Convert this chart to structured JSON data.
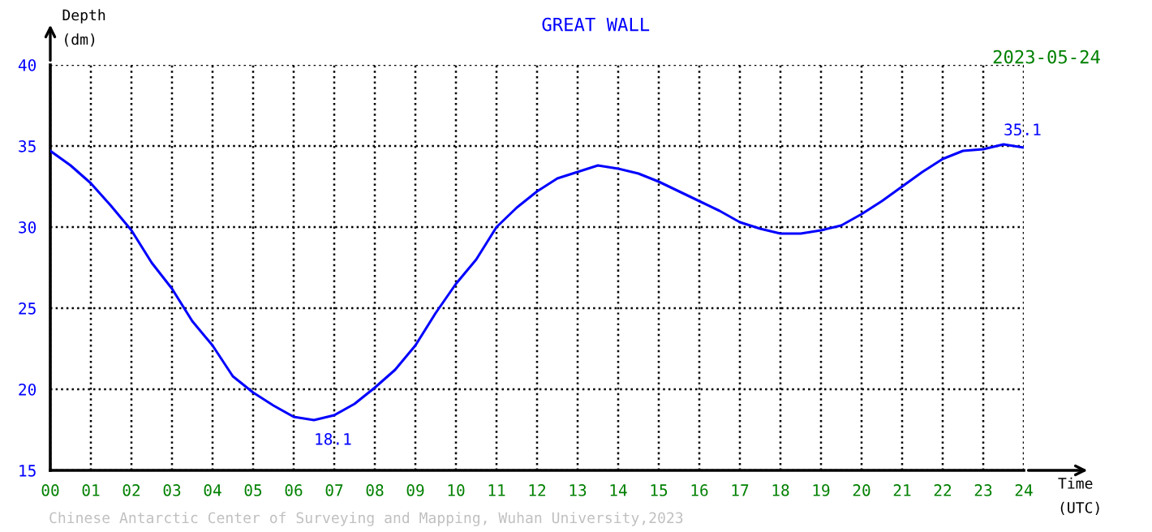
{
  "chart_data": {
    "type": "line",
    "title": "GREAT WALL",
    "subtitle": "2023-05-24",
    "xlabel": "Time\n(UTC)",
    "ylabel": "Depth\n(dm)",
    "x": [
      0,
      0.5,
      1,
      1.5,
      2,
      2.5,
      3,
      3.5,
      4,
      4.5,
      5,
      5.5,
      6,
      6.5,
      7,
      7.5,
      8,
      8.5,
      9,
      9.5,
      10,
      10.5,
      11,
      11.5,
      12,
      12.5,
      13,
      13.5,
      14,
      14.5,
      15,
      15.5,
      16,
      16.5,
      17,
      17.5,
      18,
      18.5,
      19,
      19.5,
      20,
      20.5,
      21,
      21.5,
      22,
      22.5,
      23,
      23.5,
      24
    ],
    "series": [
      {
        "color": "#0000ff",
        "values": [
          34.7,
          33.8,
          32.7,
          31.3,
          29.8,
          27.8,
          26.2,
          24.2,
          22.7,
          20.8,
          19.8,
          19.0,
          18.3,
          18.1,
          18.4,
          19.1,
          20.1,
          21.2,
          22.7,
          24.7,
          26.5,
          28.0,
          30.0,
          31.2,
          32.2,
          33.0,
          33.4,
          33.8,
          33.6,
          33.3,
          32.8,
          32.2,
          31.6,
          31.0,
          30.3,
          29.9,
          29.6,
          29.6,
          29.8,
          30.1,
          30.8,
          31.6,
          32.5,
          33.4,
          34.2,
          34.7,
          34.8,
          35.1,
          34.9
        ]
      }
    ],
    "xlim": [
      0,
      24
    ],
    "xticks": [
      {
        "value": 0,
        "label": "00"
      },
      {
        "value": 1,
        "label": "01"
      },
      {
        "value": 2,
        "label": "02"
      },
      {
        "value": 3,
        "label": "03"
      },
      {
        "value": 4,
        "label": "04"
      },
      {
        "value": 5,
        "label": "05"
      },
      {
        "value": 6,
        "label": "06"
      },
      {
        "value": 7,
        "label": "07"
      },
      {
        "value": 8,
        "label": "08"
      },
      {
        "value": 9,
        "label": "09"
      },
      10,
      11,
      12,
      13,
      14,
      15,
      16,
      17,
      18,
      19,
      20,
      21,
      22,
      23,
      24
    ],
    "ylim": [
      15,
      40
    ],
    "yticks": [
      15,
      20,
      25,
      30,
      35,
      40
    ],
    "grid": true,
    "marker": "none",
    "line_style": "solid",
    "annotations": [
      {
        "text": "18.1",
        "x": 6.5,
        "y": 18.1
      },
      {
        "text": "35.1",
        "x": 23.5,
        "y": 35.1
      },
      "Chinese Antarctic Center of Surveying and Mapping, Wuhan University,2023"
    ]
  }
}
